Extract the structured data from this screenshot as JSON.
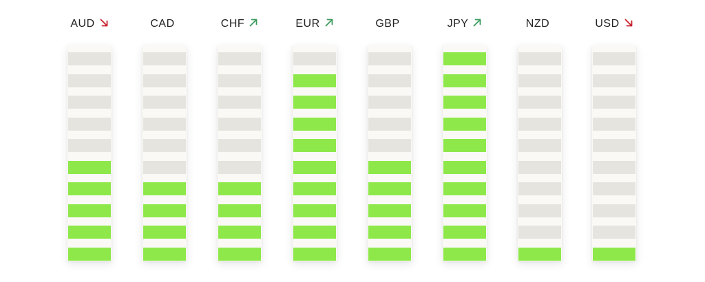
{
  "meter": {
    "total_segments": 10,
    "colors": {
      "active": "#8ee84a",
      "inactive": "#e6e4df",
      "gap": "#faf9f6",
      "trend_up": "#3a9a5c",
      "trend_down": "#c8222e",
      "text": "#222222"
    },
    "currencies": [
      {
        "code": "AUD",
        "trend": "down",
        "trend_icon": "arrow-down-right-icon",
        "strength": 5
      },
      {
        "code": "CAD",
        "trend": "none",
        "trend_icon": "",
        "strength": 4
      },
      {
        "code": "CHF",
        "trend": "up",
        "trend_icon": "arrow-up-right-icon",
        "strength": 4
      },
      {
        "code": "EUR",
        "trend": "up",
        "trend_icon": "arrow-up-right-icon",
        "strength": 9
      },
      {
        "code": "GBP",
        "trend": "none",
        "trend_icon": "",
        "strength": 5
      },
      {
        "code": "JPY",
        "trend": "up",
        "trend_icon": "arrow-up-right-icon",
        "strength": 10
      },
      {
        "code": "NZD",
        "trend": "none",
        "trend_icon": "",
        "strength": 1
      },
      {
        "code": "USD",
        "trend": "down",
        "trend_icon": "arrow-down-right-icon",
        "strength": 1
      }
    ]
  }
}
